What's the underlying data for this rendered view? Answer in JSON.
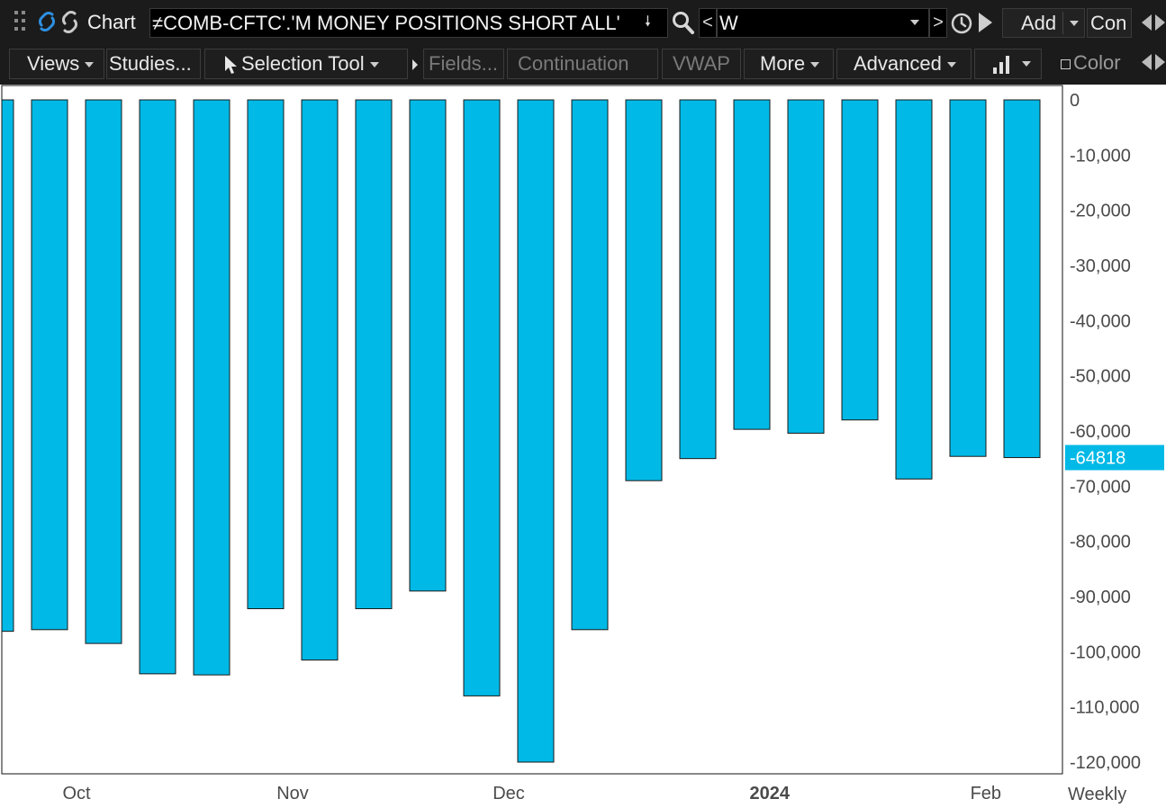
{
  "window": {
    "title": "Chart",
    "symbol": "≠COMB-CFTC'.'M MONEY POSITIONS SHORT ALL'",
    "interval": "W",
    "interval_prev": "<",
    "interval_next": ">",
    "add_label": "Add",
    "con_label": "Con"
  },
  "toolbar": {
    "views": "Views",
    "studies": "Studies...",
    "selection_tool": "Selection Tool",
    "fields": "Fields...",
    "continuation": "Continuation",
    "vwap": "VWAP",
    "more": "More",
    "advanced": "Advanced",
    "color": "Color"
  },
  "colors": {
    "bar_fill": "#00b9e6",
    "bar_stroke": "#1a1a1a",
    "last_value_bg": "#00b9e6",
    "axis_text": "#4a4a4a"
  },
  "chart_data": {
    "type": "bar",
    "ylim": [
      -122000,
      2000
    ],
    "y_ticks": [
      0,
      -10000,
      -20000,
      -30000,
      -40000,
      -50000,
      -60000,
      -70000,
      -80000,
      -90000,
      -100000,
      -110000,
      -120000
    ],
    "y_tick_labels": [
      "0",
      "-10,000",
      "-20,000",
      "-30,000",
      "-40,000",
      "-50,000",
      "-60,000",
      "-70,000",
      "-80,000",
      "-90,000",
      "-100,000",
      "-110,000",
      "-120,000"
    ],
    "values": [
      -96300,
      -96000,
      -98500,
      -104000,
      -104200,
      -92200,
      -101500,
      -92200,
      -89000,
      -108000,
      -120000,
      -96000,
      -69000,
      -65000,
      -59700,
      -60400,
      -58000,
      -68700,
      -64600,
      -64818
    ],
    "x_labels": [
      {
        "label": "Oct",
        "bar_index": 1.5,
        "bold": false
      },
      {
        "label": "Nov",
        "bar_index": 5.5,
        "bold": false
      },
      {
        "label": "Dec",
        "bar_index": 9.5,
        "bold": false
      },
      {
        "label": "2024",
        "bar_index": 14.33,
        "bold": true
      },
      {
        "label": "Feb",
        "bar_index": 18.33,
        "bold": false
      }
    ],
    "period_label": "Weekly",
    "last_value_label": "-64818",
    "last_value": -64818
  }
}
